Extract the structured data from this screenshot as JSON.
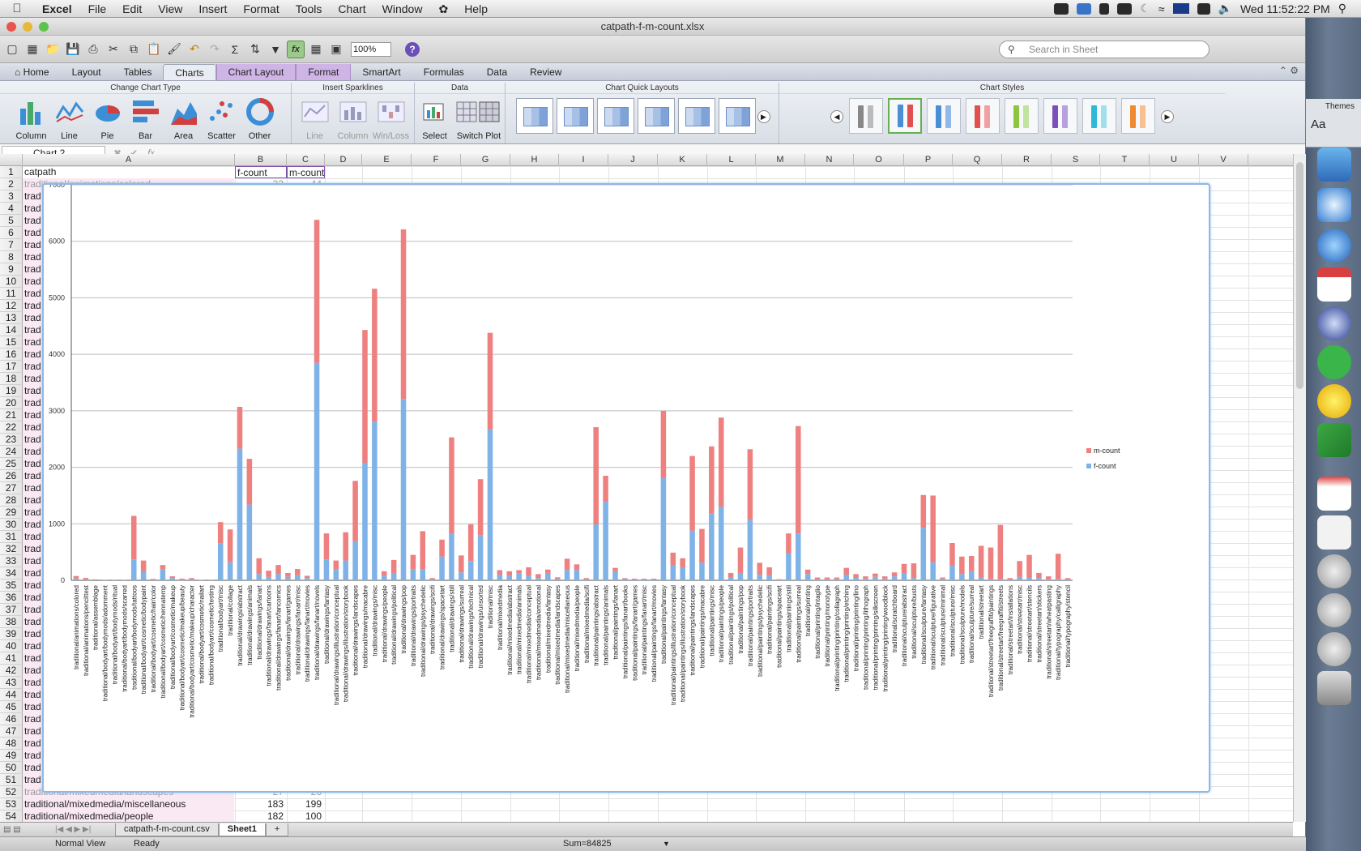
{
  "menubar": {
    "app": "Excel",
    "items": [
      "File",
      "Edit",
      "View",
      "Insert",
      "Format",
      "Tools",
      "Chart",
      "Window",
      "Help"
    ],
    "clock": "Wed 11:52:22 PM"
  },
  "window": {
    "title": "catpath-f-m-count.xlsx"
  },
  "toolbar": {
    "zoom": "100%",
    "search_placeholder": "Search in Sheet"
  },
  "ribbon_tabs": [
    "Home",
    "Layout",
    "Tables",
    "Charts",
    "Chart Layout",
    "Format",
    "SmartArt",
    "Formulas",
    "Data",
    "Review"
  ],
  "ribbon_active_tab": "Charts",
  "ribbon": {
    "change_chart_type": {
      "title": "Change Chart Type",
      "items": [
        "Column",
        "Line",
        "Pie",
        "Bar",
        "Area",
        "Scatter",
        "Other"
      ]
    },
    "sparklines": {
      "title": "Insert Sparklines",
      "items": [
        "Line",
        "Column",
        "Win/Loss"
      ]
    },
    "data": {
      "title": "Data",
      "items": [
        "Select",
        "Switch Plot"
      ]
    },
    "quick_layouts": {
      "title": "Chart Quick Layouts"
    },
    "styles": {
      "title": "Chart Styles"
    }
  },
  "formula_bar": {
    "name_box": "Chart 2",
    "fx": "fx"
  },
  "columns": [
    "A",
    "B",
    "C",
    "D",
    "E",
    "F",
    "G",
    "H",
    "I",
    "J",
    "K",
    "L",
    "M",
    "N",
    "O",
    "P",
    "Q",
    "R",
    "S",
    "T",
    "U",
    "V"
  ],
  "rows": {
    "first": 1,
    "last": 54,
    "header": {
      "a": "catpath",
      "b": "f-count",
      "c": "m-count"
    },
    "row2": {
      "a": "traditional/animations/colored",
      "b": "32",
      "c": "44"
    },
    "truncated_label": "trad",
    "row52": {
      "a": "traditional/mixedmedia/landscapes",
      "b": "27",
      "c": "26"
    },
    "row53": {
      "a": "traditional/mixedmedia/miscellaneous",
      "b": "183",
      "c": "199"
    },
    "row54": {
      "a": "traditional/mixedmedia/people",
      "b": "182",
      "c": "100"
    }
  },
  "sheet_tabs": [
    "catpath-f-m-count.csv",
    "Sheet1"
  ],
  "status": {
    "view": "Normal View",
    "ready": "Ready",
    "sum": "Sum=84825"
  },
  "colors": {
    "f_count": "#7fb3e8",
    "m_count": "#ee8080",
    "accent": "#8fb8e8"
  },
  "chart_data": {
    "type": "bar",
    "stacked": true,
    "ylim": [
      0,
      7000
    ],
    "yticks": [
      0,
      1000,
      2000,
      3000,
      4000,
      5000,
      6000,
      7000
    ],
    "grid": true,
    "legend_position": "right",
    "categories": [
      "traditional/animations/colored",
      "traditional/animations/pencittest",
      "traditional/assemblage",
      "traditional/bodyart/bodymods/adornment",
      "traditional/bodyart/bodymods/ritual",
      "traditional/bodyart/bodymods/scarred",
      "traditional/bodyart/bodymods/tattoos",
      "traditional/bodyart/cosmetic/bodypaint",
      "traditional/bodyart/cosmetic/hair/color",
      "traditional/bodyart/cosmetic/hennatemp",
      "traditional/bodyart/cosmetic/makeup",
      "traditional/bodyart/cosmetic/makeup/beauty",
      "traditional/bodyart/cosmetic/makeup/character",
      "traditional/bodyart/cosmetic/nailart",
      "traditional/bodyart/cosmetic/testing",
      "traditional/bodyart/misc",
      "traditional/collage",
      "traditional/drawings/abstract",
      "traditional/drawings/animals",
      "traditional/drawings/fanart",
      "traditional/drawings/fanart/cartoons",
      "traditional/drawings/fanart/fancomics",
      "traditional/drawings/fanart/games",
      "traditional/drawings/fanart/misc",
      "traditional/drawings/fanart/movies",
      "traditional/drawings/fanart/novels",
      "traditional/drawings/fantasy",
      "traditional/drawings/illustration/conceptual",
      "traditional/drawings/illustration/storybook",
      "traditional/drawings/landscapes",
      "traditional/drawings/macabre",
      "traditional/drawings/misc",
      "traditional/drawings/people",
      "traditional/drawings/political",
      "traditional/drawings/pop",
      "traditional/drawings/portraits",
      "traditional/drawings/psychedelic",
      "traditional/drawings/scifi",
      "traditional/drawings/spacetart",
      "traditional/drawings/still",
      "traditional/drawings/surreal",
      "traditional/drawings/technical",
      "traditional/drawings/unsorted",
      "traditional/misc",
      "traditional/mixedmedia",
      "traditional/mixedmedia/abstract",
      "traditional/mixedmedia/animals",
      "traditional/mixedmedia/conceptual",
      "traditional/mixedmedia/emotional",
      "traditional/mixedmedia/fantasy",
      "traditional/mixedmedia/landscapes",
      "traditional/mixedmedia/miscellaneous",
      "traditional/mixedmedia/people",
      "traditional/mixedmedia/scifi",
      "traditional/paintings/abstract",
      "traditional/paintings/animals",
      "traditional/paintings/fanart",
      "traditional/paintings/fanart/books",
      "traditional/paintings/fanart/games",
      "traditional/paintings/fanart/misc",
      "traditional/paintings/fanart/movies",
      "traditional/paintings/fantasy",
      "traditional/paintings/illustration/conceptual",
      "traditional/paintings/illustration/storybook",
      "traditional/paintings/landscapes",
      "traditional/paintings/macabre",
      "traditional/paintings/misc",
      "traditional/paintings/people",
      "traditional/paintings/political",
      "traditional/paintings/pop",
      "traditional/paintings/portraits",
      "traditional/paintings/psychedelic",
      "traditional/paintings/scifi",
      "traditional/paintings/spaceart",
      "traditional/paintings/still",
      "traditional/paintings/surreal",
      "traditional/printing",
      "traditional/printing/intaglio",
      "traditional/printing/monotype",
      "traditional/printing/printing/collagraph",
      "traditional/printing/printing/etching",
      "traditional/printing/printing/lino",
      "traditional/printing/printing/lithograph",
      "traditional/printing/printing/silkscreen",
      "traditional/printing/printing/woodblock",
      "traditional/scratchboard",
      "traditional/sculpture/abstract",
      "traditional/sculpture/busts",
      "traditional/sculpture/fantasy",
      "traditional/sculpture/figurative",
      "traditional/sculpture/minimal",
      "traditional/sculpture/misc",
      "traditional/sculpture/models",
      "traditional/sculpture/surreal",
      "traditional/streetart",
      "traditional/streetart/freegraffiti/paintings",
      "traditional/streetart/freegraffiti/streets",
      "traditional/streetart/installations",
      "traditional/streetart/misc",
      "traditional/streetart/stencils",
      "traditional/streetart/stickers",
      "traditional/streetart/wheatpasting",
      "traditional/typography/calligraphy",
      "traditional/typography/stencil"
    ],
    "series": [
      {
        "name": "f-count",
        "values": [
          32,
          12,
          5,
          3,
          4,
          3,
          370,
          150,
          10,
          190,
          40,
          10,
          20,
          3,
          2,
          650,
          320,
          2330,
          1340,
          110,
          60,
          110,
          60,
          90,
          40,
          3850,
          370,
          200,
          350,
          690,
          2080,
          2810,
          80,
          130,
          3210,
          200,
          200,
          20,
          420,
          820,
          140,
          340,
          800,
          2670,
          100,
          80,
          120,
          80,
          40,
          130,
          27,
          183,
          182,
          20,
          990,
          1390,
          160,
          30,
          20,
          20,
          20,
          1810,
          260,
          230,
          880,
          310,
          1180,
          1300,
          50,
          130,
          1070,
          100,
          80,
          10,
          480,
          830,
          110,
          20,
          20,
          20,
          100,
          50,
          30,
          60,
          30,
          70,
          120,
          40,
          930,
          320,
          30,
          260,
          110,
          160,
          50,
          20,
          20,
          20,
          60,
          50,
          40,
          20,
          20,
          20
        ]
      },
      {
        "name": "m-count",
        "values": [
          44,
          30,
          10,
          5,
          5,
          5,
          770,
          200,
          15,
          80,
          30,
          20,
          20,
          3,
          2,
          380,
          580,
          740,
          810,
          280,
          110,
          160,
          70,
          110,
          40,
          2530,
          460,
          150,
          500,
          1070,
          2350,
          2350,
          80,
          230,
          3000,
          250,
          670,
          20,
          300,
          1710,
          300,
          650,
          990,
          1710,
          80,
          80,
          60,
          150,
          70,
          60,
          26,
          199,
          100,
          20,
          1720,
          460,
          60,
          10,
          10,
          10,
          10,
          1190,
          230,
          160,
          1320,
          600,
          1190,
          1580,
          80,
          450,
          1250,
          210,
          150,
          10,
          350,
          1900,
          80,
          30,
          30,
          30,
          120,
          60,
          40,
          60,
          40,
          70,
          170,
          260,
          580,
          1180,
          20,
          400,
          310,
          270,
          560,
          560,
          960,
          20,
          280,
          400,
          90,
          50,
          450,
          20
        ]
      }
    ]
  }
}
